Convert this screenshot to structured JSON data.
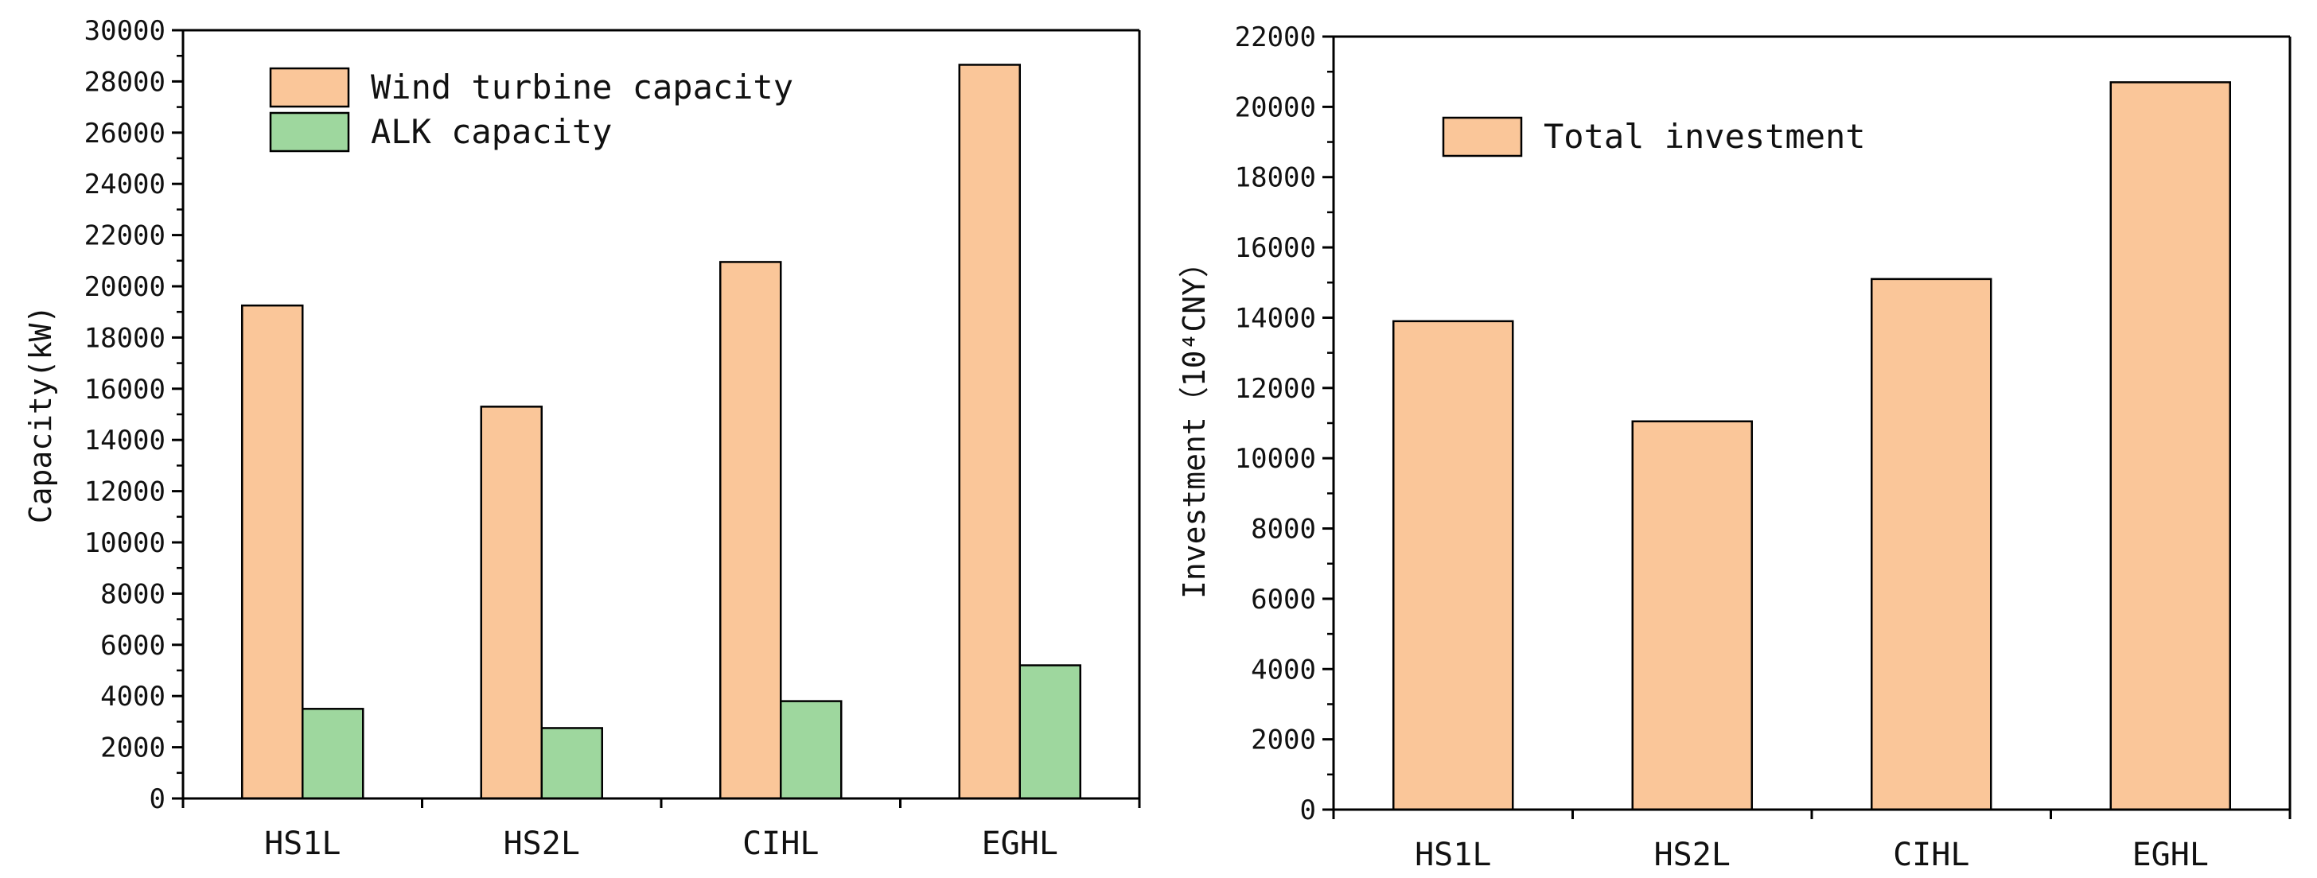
{
  "chart_data": [
    {
      "type": "bar",
      "title": "",
      "xlabel": "",
      "ylabel": "Capacity(kW)",
      "ylim": [
        0,
        30000
      ],
      "ytick_step": 2000,
      "categories": [
        "HS1L",
        "HS2L",
        "CIHL",
        "EGHL"
      ],
      "series": [
        {
          "name": "Wind turbine capacity",
          "color": "#FAC699",
          "values": [
            19250,
            15300,
            20950,
            28650
          ]
        },
        {
          "name": "ALK capacity",
          "color": "#9ED79E",
          "values": [
            3500,
            2750,
            3800,
            5200
          ]
        }
      ],
      "legend": "top-left",
      "grid": false
    },
    {
      "type": "bar",
      "title": "",
      "xlabel": "",
      "ylabel": "Investment（10⁴CNY）",
      "ylim": [
        0,
        22000
      ],
      "ytick_step": 2000,
      "categories": [
        "HS1L",
        "HS2L",
        "CIHL",
        "EGHL"
      ],
      "series": [
        {
          "name": "Total investment",
          "color": "#FAC699",
          "values": [
            13900,
            11050,
            15100,
            20700
          ]
        }
      ],
      "legend": "top-left",
      "grid": false
    }
  ]
}
